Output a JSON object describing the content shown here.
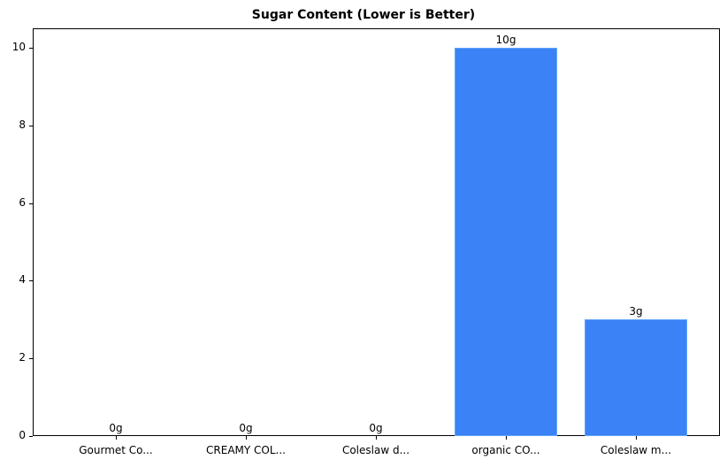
{
  "chart_data": {
    "type": "bar",
    "title": "Sugar Content (Lower is Better)",
    "xlabel": "",
    "ylabel": "",
    "categories": [
      "Gourmet Co...",
      "CREAMY COL...",
      "Coleslaw d...",
      "organic CO...",
      "Coleslaw m..."
    ],
    "values": [
      0,
      0,
      0,
      10,
      3
    ],
    "value_labels": [
      "0g",
      "0g",
      "0g",
      "10g",
      "3g"
    ],
    "ylim": [
      0,
      10.5
    ],
    "yticks": [
      0,
      2,
      4,
      6,
      8,
      10
    ],
    "grid": false,
    "legend": null,
    "bar_color": "#3b82f6"
  }
}
